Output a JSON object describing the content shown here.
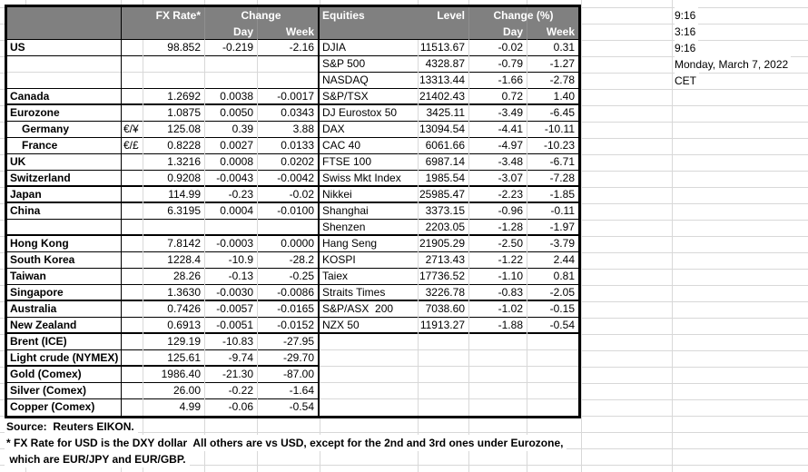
{
  "fx_table": {
    "header": {
      "rate": "FX Rate*",
      "change": "Change",
      "day": "Day",
      "week": "Week"
    },
    "rows": [
      {
        "name": "US",
        "sym": "",
        "rate": "98.852",
        "day": "-0.219",
        "week": "-2.16",
        "bb": "thin"
      },
      {
        "name": "",
        "sym": "",
        "rate": "",
        "day": "",
        "week": "",
        "bb": "grid"
      },
      {
        "name": "",
        "sym": "",
        "rate": "",
        "day": "",
        "week": "",
        "bb": "thin"
      },
      {
        "name": "Canada",
        "sym": "",
        "rate": "1.2692",
        "day": "0.0038",
        "week": "-0.0017",
        "bb": "thick"
      },
      {
        "name": "Eurozone",
        "sym": "",
        "rate": "1.0875",
        "day": "0.0050",
        "week": "0.0343",
        "bb": "thin"
      },
      {
        "name": "Germany",
        "sym": "€/¥",
        "rate": "125.08",
        "day": "0.39",
        "week": "3.88",
        "bb": "thin",
        "indent": true
      },
      {
        "name": "France",
        "sym": "€/£",
        "rate": "0.8228",
        "day": "0.0027",
        "week": "0.0133",
        "bb": "thin",
        "indent": true
      },
      {
        "name": "UK",
        "sym": "",
        "rate": "1.3216",
        "day": "0.0008",
        "week": "0.0202",
        "bb": "thin"
      },
      {
        "name": "Switzerland",
        "sym": "",
        "rate": "0.9208",
        "day": "-0.0043",
        "week": "-0.0042",
        "bb": "thick"
      },
      {
        "name": "Japan",
        "sym": "",
        "rate": "114.99",
        "day": "-0.23",
        "week": "-0.02",
        "bb": "thick"
      },
      {
        "name": "China",
        "sym": "",
        "rate": "6.3195",
        "day": "0.0004",
        "week": "-0.0100",
        "bb": "thin"
      },
      {
        "name": "",
        "sym": "",
        "rate": "",
        "day": "",
        "week": "",
        "bb": "thick"
      },
      {
        "name": "Hong Kong",
        "sym": "",
        "rate": "7.8142",
        "day": "-0.0003",
        "week": "0.0000",
        "bb": "thin"
      },
      {
        "name": "South Korea",
        "sym": "",
        "rate": "1228.4",
        "day": "-10.9",
        "week": "-28.2",
        "bb": "thin"
      },
      {
        "name": "Taiwan",
        "sym": "",
        "rate": "28.26",
        "day": "-0.13",
        "week": "-0.25",
        "bb": "thin"
      },
      {
        "name": "Singapore",
        "sym": "",
        "rate": "1.3630",
        "day": "-0.0030",
        "week": "-0.0086",
        "bb": "thick"
      },
      {
        "name": "Australia",
        "sym": "",
        "rate": "0.7426",
        "day": "-0.0057",
        "week": "-0.0165",
        "bb": "thin"
      },
      {
        "name": "New Zealand",
        "sym": "",
        "rate": "0.6913",
        "day": "-0.0051",
        "week": "-0.0152",
        "bb": "thick"
      },
      {
        "name": "Brent (ICE)",
        "sym": "",
        "rate": "129.19",
        "day": "-10.83",
        "week": "-27.95",
        "bb": "thin"
      },
      {
        "name": "Light crude (NYMEX)",
        "sym": "",
        "rate": "125.61",
        "day": "-9.74",
        "week": "-29.70",
        "bb": "thick"
      },
      {
        "name": "Gold (Comex)",
        "sym": "",
        "rate": "1986.40",
        "day": "-21.30",
        "week": "-87.00",
        "bb": "thin"
      },
      {
        "name": "Silver (Comex)",
        "sym": "",
        "rate": "26.00",
        "day": "-0.22",
        "week": "-1.64",
        "bb": "thin"
      },
      {
        "name": "Copper (Comex)",
        "sym": "",
        "rate": "4.99",
        "day": "-0.06",
        "week": "-0.54",
        "bb": "none"
      }
    ]
  },
  "equities_table": {
    "header": {
      "title": "Equities",
      "level": "Level",
      "change": "Change (%)",
      "day": "Day",
      "week": "Week"
    },
    "rows": [
      {
        "name": "DJIA",
        "level": "11513.67",
        "day": "-0.02",
        "week": "0.31",
        "bb": "thin"
      },
      {
        "name": "S&P 500",
        "level": "4328.87",
        "day": "-0.79",
        "week": "-1.27",
        "bb": "thin"
      },
      {
        "name": "NASDAQ",
        "level": "13313.44",
        "day": "-1.66",
        "week": "-2.78",
        "bb": "thin"
      },
      {
        "name": "S&P/TSX",
        "level": "21402.43",
        "day": "0.72",
        "week": "1.40",
        "bb": "thick"
      },
      {
        "name": "DJ Eurostox 50",
        "level": "3425.11",
        "day": "-3.49",
        "week": "-6.45",
        "bb": "thin"
      },
      {
        "name": "DAX",
        "level": "13094.54",
        "day": "-4.41",
        "week": "-10.11",
        "bb": "thin"
      },
      {
        "name": "CAC 40",
        "level": "6061.66",
        "day": "-4.97",
        "week": "-10.23",
        "bb": "thin"
      },
      {
        "name": "FTSE 100",
        "level": "6987.14",
        "day": "-3.48",
        "week": "-6.71",
        "bb": "thin"
      },
      {
        "name": "Swiss Mkt Index",
        "level": "1985.54",
        "day": "-3.07",
        "week": "-7.28",
        "bb": "thick"
      },
      {
        "name": "Nikkei",
        "level": "25985.47",
        "day": "-2.23",
        "week": "-1.85",
        "bb": "thick"
      },
      {
        "name": "Shanghai",
        "level": "3373.15",
        "day": "-0.96",
        "week": "-0.11",
        "bb": "thin"
      },
      {
        "name": "Shenzen",
        "level": "2203.05",
        "day": "-1.28",
        "week": "-1.97",
        "bb": "thick"
      },
      {
        "name": "Hang Seng",
        "level": "21905.29",
        "day": "-2.50",
        "week": "-3.79",
        "bb": "thin"
      },
      {
        "name": "KOSPI",
        "level": "2713.43",
        "day": "-1.22",
        "week": "2.44",
        "bb": "thin"
      },
      {
        "name": "Taiex",
        "level": "17736.52",
        "day": "-1.10",
        "week": "0.81",
        "bb": "thin"
      },
      {
        "name": "Straits Times",
        "level": "3226.78",
        "day": "-0.83",
        "week": "-2.05",
        "bb": "thick"
      },
      {
        "name": "S&P/ASX  200",
        "level": "7038.60",
        "day": "-1.02",
        "week": "-0.15",
        "bb": "thin"
      },
      {
        "name": "NZX 50",
        "level": "11913.27",
        "day": "-1.88",
        "week": "-0.54",
        "bb": "thick"
      },
      {
        "name": "",
        "level": "",
        "day": "",
        "week": "",
        "bb": "grid"
      },
      {
        "name": "",
        "level": "",
        "day": "",
        "week": "",
        "bb": "grid"
      },
      {
        "name": "",
        "level": "",
        "day": "",
        "week": "",
        "bb": "grid"
      },
      {
        "name": "",
        "level": "",
        "day": "",
        "week": "",
        "bb": "grid"
      },
      {
        "name": "",
        "level": "",
        "day": "",
        "week": "",
        "bb": "none"
      }
    ]
  },
  "time_panel": {
    "cells": [
      "9:16",
      "3:16",
      "9:16",
      "Monday, March 7, 2022",
      "CET"
    ]
  },
  "footer": {
    "source": "Source:  Reuters EIKON.",
    "note1": "* FX Rate for USD is the DXY dollar  All others are vs USD, except for the 2nd and 3rd ones under Eurozone,",
    "note2": " which are EUR/JPY and EUR/GBP."
  }
}
